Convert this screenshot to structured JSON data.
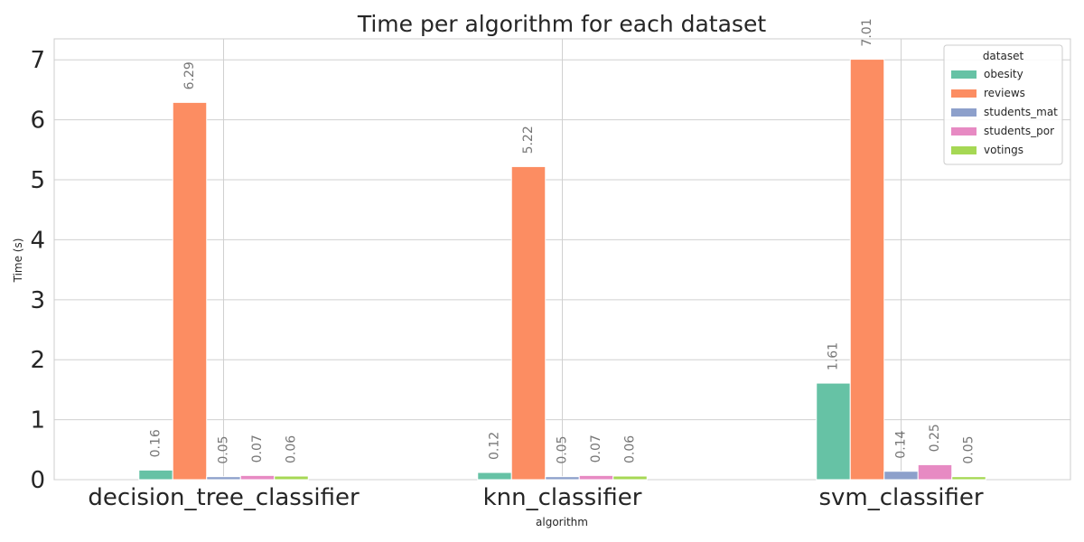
{
  "chart_data": {
    "type": "bar",
    "title": "Time per algorithm for each dataset",
    "xlabel": "algorithm",
    "ylabel": "Time (s)",
    "ylim": [
      0,
      7.35
    ],
    "yticks": [
      0,
      1,
      2,
      3,
      4,
      5,
      6,
      7
    ],
    "grid": true,
    "legend": {
      "title": "dataset",
      "placement": "top-right"
    },
    "categories": [
      "decision_tree_classifier",
      "knn_classifier",
      "svm_classifier"
    ],
    "series": [
      {
        "name": "obesity",
        "color": "#66c2a5",
        "values": [
          0.16,
          0.12,
          1.61
        ]
      },
      {
        "name": "reviews",
        "color": "#fc8d62",
        "values": [
          6.29,
          5.22,
          7.01
        ]
      },
      {
        "name": "students_mat",
        "color": "#8da0cb",
        "values": [
          0.05,
          0.05,
          0.14
        ]
      },
      {
        "name": "students_por",
        "color": "#e78ac3",
        "values": [
          0.07,
          0.07,
          0.25
        ]
      },
      {
        "name": "votings",
        "color": "#a6d854",
        "values": [
          0.06,
          0.06,
          0.05
        ]
      }
    ]
  }
}
